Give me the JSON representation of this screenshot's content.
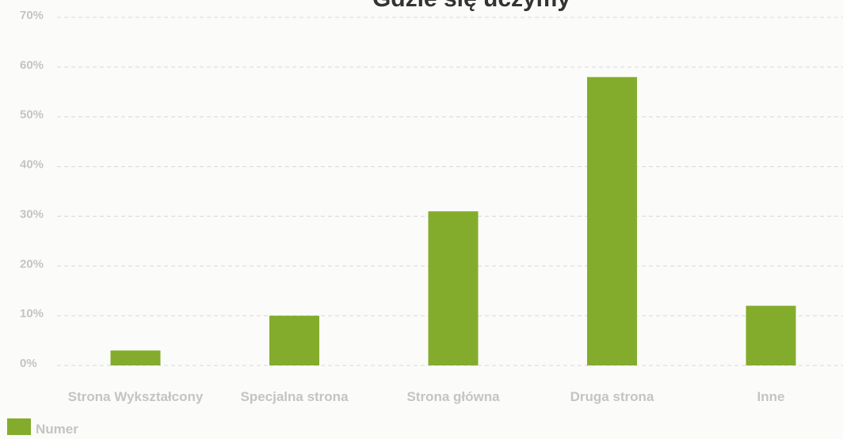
{
  "chart_data": {
    "type": "bar",
    "title": "Gdzie się uczymy",
    "categories": [
      "Strona Wykształcony",
      "Specjalna strona",
      "Strona główna",
      "Druga strona",
      "Inne"
    ],
    "series": [
      {
        "name": "Numer",
        "values": [
          3,
          10,
          31,
          58,
          12
        ]
      }
    ],
    "yticks": [
      "0%",
      "10%",
      "20%",
      "30%",
      "40%",
      "50%",
      "60%",
      "70%"
    ],
    "ylim": [
      0,
      70
    ],
    "y_unit": "%",
    "xlabel": "",
    "ylabel": "",
    "grid": true,
    "legend_position": "bottom-left",
    "colors": {
      "bar": "#84ac2c",
      "tick_text": "#c4c4c4",
      "title": "#333333",
      "grid": "#d8d8d8",
      "background": "#fbfbf9"
    }
  }
}
